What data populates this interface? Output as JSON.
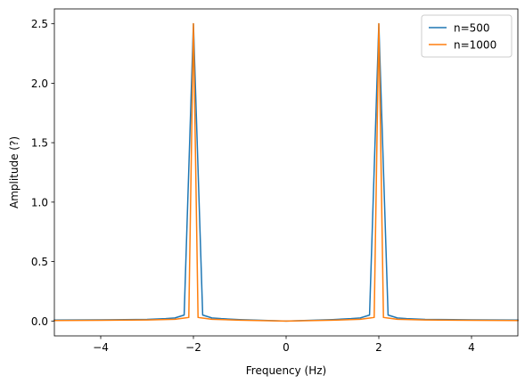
{
  "chart_data": {
    "type": "line",
    "xlabel": "Frequency (Hz)",
    "ylabel": "Amplitude (?)",
    "xlim": [
      -5,
      5
    ],
    "ylim": [
      -0.125,
      2.625
    ],
    "xticks": [
      -4,
      -2,
      0,
      2,
      4
    ],
    "yticks": [
      0.0,
      0.5,
      1.0,
      1.5,
      2.0,
      2.5
    ],
    "xtick_labels": [
      "−4",
      "−2",
      "0",
      "2",
      "4"
    ],
    "ytick_labels": [
      "0.0",
      "0.5",
      "1.0",
      "1.5",
      "2.0",
      "2.5"
    ],
    "grid": false,
    "legend_position": "top-right",
    "series": [
      {
        "name": "n=500",
        "color": "#1f77b4",
        "x": [
          -5.0,
          -4.0,
          -3.0,
          -2.6,
          -2.4,
          -2.2,
          -2.0,
          -1.8,
          -1.6,
          -1.4,
          -1.0,
          0.0,
          1.0,
          1.4,
          1.6,
          1.8,
          2.0,
          2.2,
          2.4,
          2.6,
          3.0,
          4.0,
          5.0
        ],
        "y": [
          0.008,
          0.01,
          0.014,
          0.02,
          0.026,
          0.05,
          2.5,
          0.05,
          0.026,
          0.02,
          0.012,
          0.0,
          0.012,
          0.02,
          0.026,
          0.05,
          2.5,
          0.05,
          0.026,
          0.02,
          0.014,
          0.01,
          0.008
        ]
      },
      {
        "name": "n=1000",
        "color": "#ff7f0e",
        "x": [
          -5.0,
          -4.0,
          -3.0,
          -2.4,
          -2.2,
          -2.1,
          -2.0,
          -1.9,
          -1.8,
          -1.6,
          -1.0,
          0.0,
          1.0,
          1.6,
          1.8,
          1.9,
          2.0,
          2.1,
          2.2,
          2.4,
          3.0,
          4.0,
          5.0
        ],
        "y": [
          0.004,
          0.006,
          0.009,
          0.015,
          0.025,
          0.03,
          2.5,
          0.03,
          0.025,
          0.015,
          0.007,
          0.0,
          0.007,
          0.015,
          0.025,
          0.03,
          2.5,
          0.03,
          0.025,
          0.015,
          0.009,
          0.006,
          0.004
        ]
      }
    ]
  }
}
